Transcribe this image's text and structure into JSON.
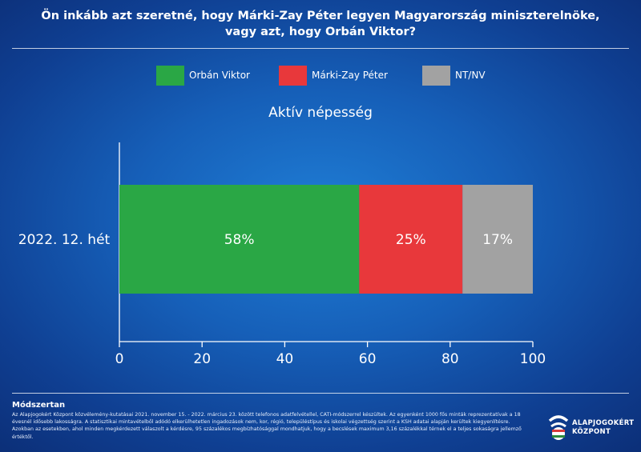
{
  "header": {
    "title_line1": "Ön inkább azt szeretné, hogy Márki-Zay Péter legyen Magyarország miniszterelnöke,",
    "title_line2": "vagy azt, hogy Orbán Viktor?"
  },
  "legend": [
    {
      "label": "Orbán Viktor",
      "color": "#2aa745"
    },
    {
      "label": "Márki-Zay Péter",
      "color": "#e8383b"
    },
    {
      "label": "NT/NV",
      "color": "#a2a2a2"
    }
  ],
  "subtitle": "Aktív népesség",
  "chart_data": {
    "type": "bar",
    "orientation": "horizontal",
    "stacked": true,
    "categories": [
      "2022. 12. hét"
    ],
    "series": [
      {
        "name": "Orbán Viktor",
        "values": [
          58
        ],
        "labels": [
          "58%"
        ],
        "color": "#2aa745"
      },
      {
        "name": "Márki-Zay Péter",
        "values": [
          25
        ],
        "labels": [
          "25%"
        ],
        "color": "#e8383b"
      },
      {
        "name": "NT/NV",
        "values": [
          17
        ],
        "labels": [
          "17%"
        ],
        "color": "#a2a2a2"
      }
    ],
    "xlim": [
      0,
      100
    ],
    "xticks": [
      "0",
      "20",
      "40",
      "60",
      "80",
      "100"
    ],
    "grid": false,
    "legend_position": "top"
  },
  "methodology": {
    "title": "Módszertan",
    "text": "Az Alapjogokért Központ közvélemény-kutatásai 2021. november 15. - 2022. március 23. között telefonos adatfelvétellel, CATI-módszerrel készültek. Az egyenként 1000 fős minták reprezentatívak a 18 évesnél idősebb lakosságra. A statisztikai mintavételből adódó elkerülhetetlen ingadozások nem, kor, régió, településtípus és iskolai végzettség szerint a KSH adatai alapján kerültek kiegyenlítésre. Azokban az esetekben, ahol minden megkérdezett válaszolt a kérdésre, 95 százalékos megbízhatósággal mondhatjuk, hogy a becslések maximum 3,16 százalékkal térnek el a teljes sokaságra jellemző értéktől."
  },
  "logo": {
    "line1": "ALAPJOGOKÉRT",
    "line2": "KÖZPONT"
  }
}
